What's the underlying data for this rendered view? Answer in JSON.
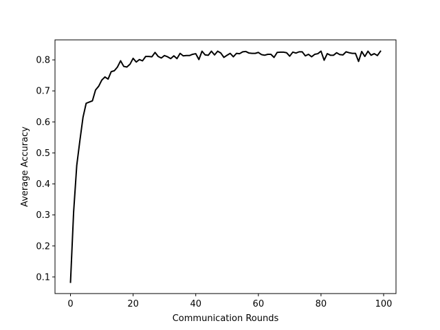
{
  "chart_data": {
    "type": "line",
    "title": "",
    "xlabel": "Communication Rounds",
    "ylabel": "Average Accuracy",
    "xlim": [
      -4.95,
      103.95
    ],
    "ylim": [
      0.0465,
      0.8645
    ],
    "xticks": [
      0,
      20,
      40,
      60,
      80,
      100
    ],
    "xtick_labels": [
      "0",
      "20",
      "40",
      "60",
      "80",
      "100"
    ],
    "yticks": [
      0.1,
      0.2,
      0.3,
      0.4,
      0.5,
      0.6,
      0.7,
      0.8
    ],
    "ytick_labels": [
      "0.1",
      "0.2",
      "0.3",
      "0.4",
      "0.5",
      "0.6",
      "0.7",
      "0.8"
    ],
    "grid": false,
    "legend": false,
    "line_color": "#000000",
    "series": [
      {
        "x": [
          0,
          1,
          2,
          3,
          4,
          5,
          6,
          7,
          8,
          9,
          10,
          11,
          12,
          13,
          14,
          15,
          16,
          17,
          18,
          19,
          20,
          21,
          22,
          23,
          24,
          25,
          26,
          27,
          28,
          29,
          30,
          31,
          32,
          33,
          34,
          35,
          36,
          37,
          38,
          39,
          40,
          41,
          42,
          43,
          44,
          45,
          46,
          47,
          48,
          49,
          50,
          51,
          52,
          53,
          54,
          55,
          56,
          57,
          58,
          59,
          60,
          61,
          62,
          63,
          64,
          65,
          66,
          67,
          68,
          69,
          70,
          71,
          72,
          73,
          74,
          75,
          76,
          77,
          78,
          79,
          80,
          81,
          82,
          83,
          84,
          85,
          86,
          87,
          88,
          89,
          90,
          91,
          92,
          93,
          94,
          95,
          96,
          97,
          98,
          99
        ],
        "values": [
          0.083,
          0.31,
          0.46,
          0.54,
          0.615,
          0.66,
          0.664,
          0.668,
          0.703,
          0.715,
          0.735,
          0.745,
          0.738,
          0.762,
          0.765,
          0.777,
          0.797,
          0.779,
          0.777,
          0.786,
          0.805,
          0.793,
          0.801,
          0.797,
          0.811,
          0.811,
          0.81,
          0.824,
          0.811,
          0.806,
          0.814,
          0.81,
          0.804,
          0.813,
          0.804,
          0.821,
          0.813,
          0.814,
          0.814,
          0.818,
          0.82,
          0.801,
          0.828,
          0.816,
          0.815,
          0.828,
          0.816,
          0.828,
          0.822,
          0.808,
          0.815,
          0.821,
          0.81,
          0.821,
          0.82,
          0.826,
          0.827,
          0.822,
          0.821,
          0.821,
          0.824,
          0.817,
          0.815,
          0.818,
          0.818,
          0.808,
          0.824,
          0.825,
          0.825,
          0.823,
          0.812,
          0.825,
          0.822,
          0.826,
          0.826,
          0.813,
          0.818,
          0.81,
          0.818,
          0.82,
          0.828,
          0.799,
          0.82,
          0.815,
          0.815,
          0.823,
          0.817,
          0.816,
          0.826,
          0.823,
          0.821,
          0.821,
          0.795,
          0.827,
          0.811,
          0.828,
          0.815,
          0.82,
          0.814,
          0.828
        ]
      }
    ]
  }
}
